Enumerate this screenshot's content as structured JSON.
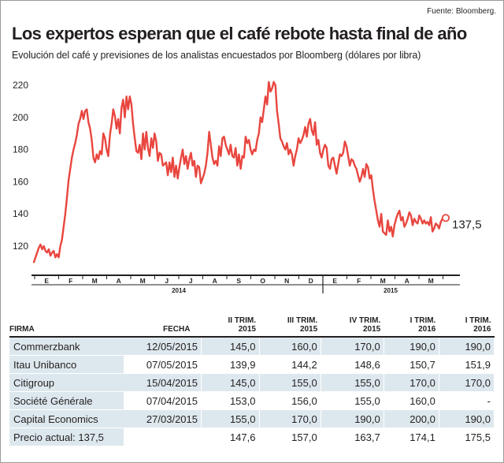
{
  "source": "Fuente: Bloomberg.",
  "title": "Los expertos esperan que el café rebote hasta final de año",
  "subtitle": "Evolución del café y previsiones de los analistas encuestados por Bloomberg (dólares por libra)",
  "colors": {
    "line": "#e8463f",
    "axis": "#231f20",
    "shade": "#dde8ee"
  },
  "chart_data": {
    "type": "line",
    "title": "Los expertos esperan que el café rebote hasta final de año",
    "ylim": [
      105,
      225
    ],
    "y_ticks": [
      120,
      140,
      160,
      180,
      200,
      220
    ],
    "x_month_labels": [
      "E",
      "F",
      "M",
      "A",
      "M",
      "J",
      "J",
      "A",
      "S",
      "O",
      "N",
      "D",
      "E",
      "F",
      "M",
      "A",
      "M"
    ],
    "x_year_labels": [
      "2014",
      "2015"
    ],
    "last_value_label": "137,5",
    "series": [
      {
        "values": [
          110,
          113,
          116,
          119,
          121,
          118,
          120,
          117,
          116,
          118,
          114,
          116,
          117,
          113,
          115,
          113,
          120,
          124,
          132,
          140,
          150,
          161,
          168,
          175,
          180,
          184,
          189,
          196,
          199,
          204,
          199,
          204,
          205,
          197,
          193,
          186,
          175,
          172,
          177,
          174,
          179,
          177,
          190,
          187,
          180,
          176,
          189,
          196,
          205,
          201,
          193,
          199,
          190,
          206,
          211,
          200,
          213,
          205,
          213,
          208,
          196,
          187,
          179,
          178,
          183,
          174,
          190,
          180,
          191,
          181,
          176,
          187,
          181,
          190,
          185,
          173,
          178,
          177,
          170,
          171,
          172,
          164,
          172,
          166,
          175,
          163,
          170,
          162,
          169,
          175,
          180,
          171,
          176,
          168,
          174,
          178,
          170,
          173,
          163,
          170,
          169,
          159,
          162,
          165,
          170,
          178,
          191,
          183,
          175,
          171,
          173,
          170,
          182,
          176,
          187,
          188,
          183,
          180,
          177,
          183,
          176,
          175,
          181,
          170,
          177,
          168,
          176,
          175,
          188,
          184,
          186,
          180,
          177,
          180,
          179,
          186,
          190,
          200,
          197,
          205,
          213,
          208,
          222,
          216,
          218,
          222,
          220,
          204,
          196,
          187,
          185,
          182,
          180,
          184,
          177,
          180,
          177,
          170,
          176,
          180,
          187,
          184,
          186,
          189,
          194,
          188,
          196,
          199,
          192,
          189,
          197,
          183,
          186,
          178,
          175,
          180,
          183,
          181,
          170,
          168,
          174,
          175,
          170,
          165,
          171,
          177,
          176,
          178,
          185,
          182,
          176,
          170,
          174,
          173,
          170,
          168,
          164,
          160,
          163,
          168,
          163,
          171,
          169,
          162,
          164,
          155,
          148,
          142,
          136,
          132,
          140,
          129,
          128,
          127,
          136,
          129,
          132,
          126,
          133,
          137,
          140,
          142,
          136,
          138,
          132,
          134,
          137,
          141,
          139,
          133,
          137,
          135,
          134,
          139,
          137,
          134,
          136,
          134,
          135,
          133,
          138,
          129,
          131,
          134,
          133,
          131,
          135,
          137,
          139,
          137.5
        ]
      }
    ]
  },
  "table": {
    "headers": {
      "firm": "FIRMA",
      "date": "FECHA",
      "q1": [
        "II TRIM.",
        "2015"
      ],
      "q2": [
        "III TRIM.",
        "2015"
      ],
      "q3": [
        "IV TRIM.",
        "2015"
      ],
      "q4": [
        "I TRIM.",
        "2016"
      ],
      "q5": [
        "I TRIM.",
        "2016"
      ]
    },
    "rows": [
      {
        "firm": "Commerzbank",
        "date": "12/05/2015",
        "v": [
          "145,0",
          "160,0",
          "170,0",
          "190,0",
          "190,0"
        ]
      },
      {
        "firm": "Itau Unibanco",
        "date": "07/05/2015",
        "v": [
          "139,9",
          "144,2",
          "148,6",
          "150,7",
          "151,9"
        ]
      },
      {
        "firm": "Citigroup",
        "date": "15/04/2015",
        "v": [
          "145,0",
          "155,0",
          "155,0",
          "170,0",
          "170,0"
        ]
      },
      {
        "firm": "Société Générale",
        "date": "07/04/2015",
        "v": [
          "153,0",
          "156,0",
          "155,0",
          "160,0",
          "-"
        ]
      },
      {
        "firm": "Capital Economics",
        "date": "27/03/2015",
        "v": [
          "155,0",
          "170,0",
          "190,0",
          "200,0",
          "190,0"
        ]
      },
      {
        "firm": "Precio actual: 137,5",
        "date": "",
        "v": [
          "147,6",
          "157,0",
          "163,7",
          "174,1",
          "175,5"
        ]
      }
    ]
  }
}
